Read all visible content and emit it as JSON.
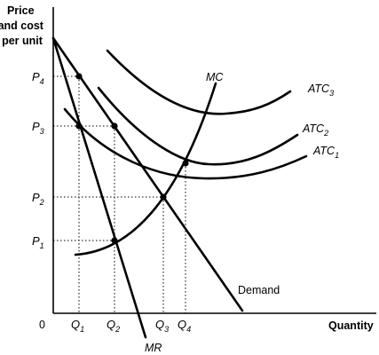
{
  "axes": {
    "y_label_lines": [
      "Price",
      "and cost",
      "per unit"
    ],
    "x_label": "Quantity",
    "origin": "0"
  },
  "y_ticks": [
    {
      "main": "P",
      "sub": "4"
    },
    {
      "main": "P",
      "sub": "3"
    },
    {
      "main": "P",
      "sub": "2"
    },
    {
      "main": "P",
      "sub": "1"
    }
  ],
  "x_ticks": [
    {
      "main": "Q",
      "sub": "1"
    },
    {
      "main": "Q",
      "sub": "2"
    },
    {
      "main": "Q",
      "sub": "3"
    },
    {
      "main": "Q",
      "sub": "4"
    }
  ],
  "curves": {
    "mc": "MC",
    "atc3": {
      "main": "ATC",
      "sub": "3"
    },
    "atc2": {
      "main": "ATC",
      "sub": "2"
    },
    "atc1": {
      "main": "ATC",
      "sub": "1"
    },
    "demand": "Demand",
    "mr": "MR"
  }
}
